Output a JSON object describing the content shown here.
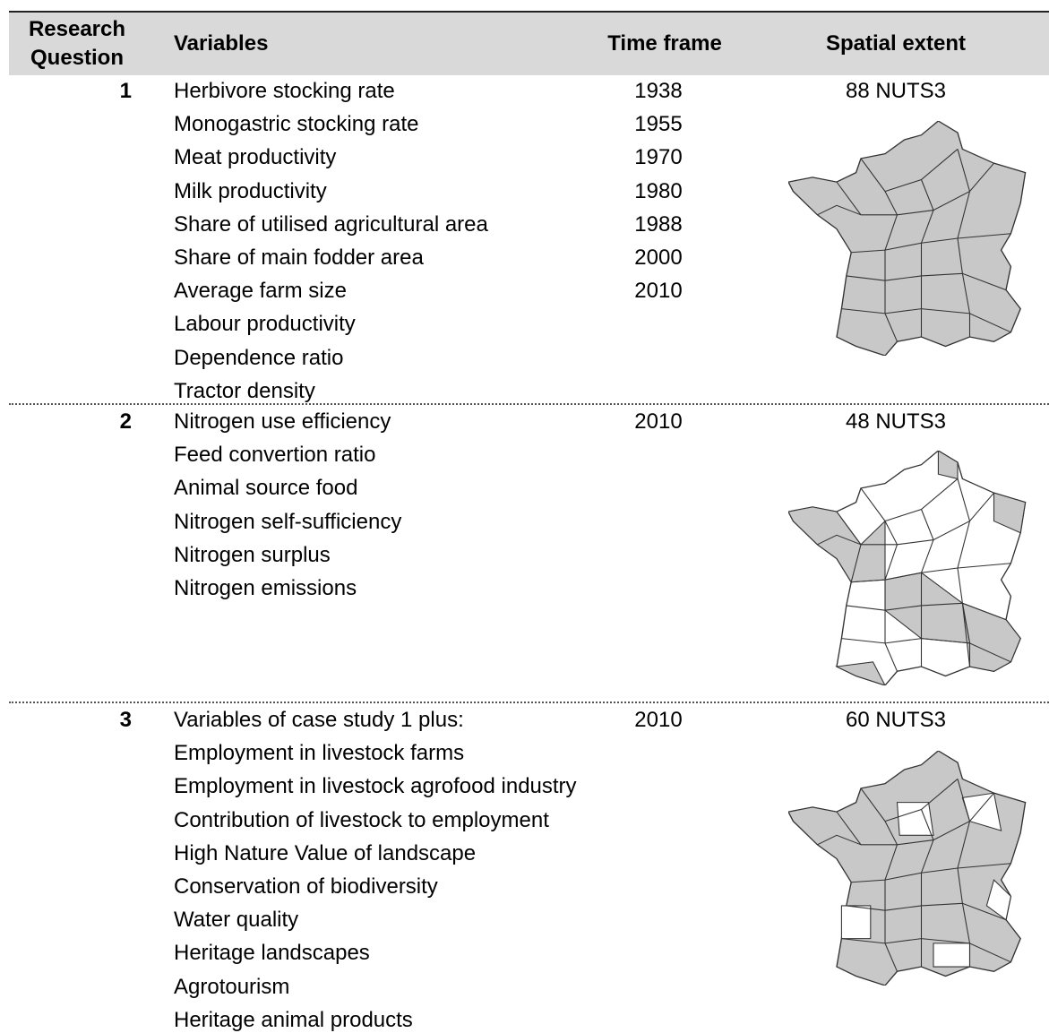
{
  "table": {
    "columns": [
      "Research Question",
      "Variables",
      "Time frame",
      "Spatial extent"
    ],
    "sections": [
      {
        "number": "1",
        "variables": [
          "Herbivore stocking rate",
          "Monogastric stocking rate",
          "Meat productivity",
          "Milk productivity",
          "Share of utilised agricultural area",
          "Share of main fodder area",
          "Average farm size",
          "Labour productivity",
          "Dependence ratio",
          "Tractor density"
        ],
        "time_frame": [
          "1938",
          "1955",
          "1970",
          "1980",
          "1988",
          "2000",
          "2010"
        ],
        "spatial_extent": "88 NUTS3"
      },
      {
        "number": "2",
        "variables": [
          "Nitrogen use efficiency",
          "Feed convertion ratio",
          "Animal source food",
          "Nitrogen self-sufficiency",
          "Nitrogen surplus",
          "Nitrogen emissions"
        ],
        "time_frame": [
          "2010"
        ],
        "spatial_extent": "48 NUTS3"
      },
      {
        "number": "3",
        "variables": [
          "Variables of case study 1 plus:",
          "Employment in livestock farms",
          "Employment in livestock agrofood industry",
          "Contribution of livestock to employment",
          "High Nature Value of landscape",
          "Conservation of biodiversity",
          "Water quality",
          "Heritage landscapes",
          "Agrotourism",
          "Heritage animal products"
        ],
        "time_frame": [
          "2010"
        ],
        "spatial_extent": "60 NUTS3"
      }
    ]
  }
}
